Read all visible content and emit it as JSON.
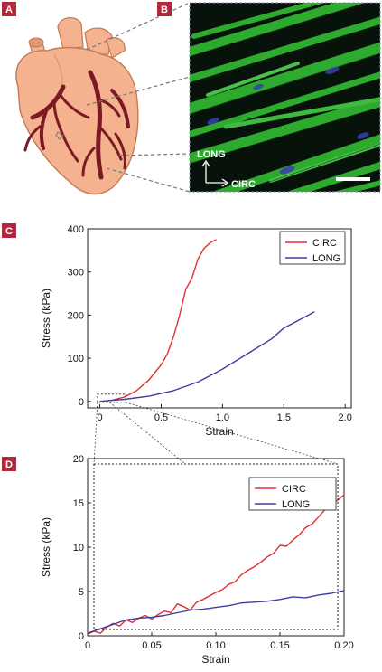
{
  "panels": {
    "a": "A",
    "b": "B",
    "c": "C",
    "d": "D"
  },
  "micrograph": {
    "long_label": "LONG",
    "circ_label": "CIRC"
  },
  "colors": {
    "circ": "#e03030",
    "long": "#3b3fa0",
    "panel_tag": "#b5263a",
    "fiber": "#2fb52f",
    "heart": "#f4b28e",
    "vessel": "#7a1a24"
  },
  "chart_data": [
    {
      "type": "line",
      "xlabel": "Strain",
      "ylabel": "Stress (kPa)",
      "xlim": [
        -0.1,
        2.05
      ],
      "ylim": [
        -15,
        400
      ],
      "xticks": [
        0,
        0.5,
        1.0,
        1.5,
        2.0
      ],
      "xtick_labels": [
        "0",
        "0.5",
        "1.0",
        "1.5",
        "2.0"
      ],
      "yticks": [
        0,
        100,
        200,
        300,
        400
      ],
      "ytick_labels": [
        "0",
        "100",
        "200",
        "300",
        "400"
      ],
      "legend": "top-right",
      "series": [
        {
          "name": "CIRC",
          "color": "#e03030",
          "x": [
            0,
            0.1,
            0.2,
            0.3,
            0.4,
            0.5,
            0.55,
            0.6,
            0.65,
            0.7,
            0.75,
            0.8,
            0.85,
            0.9,
            0.95
          ],
          "y": [
            0,
            3,
            10,
            25,
            50,
            85,
            110,
            150,
            200,
            260,
            285,
            330,
            355,
            368,
            375
          ]
        },
        {
          "name": "LONG",
          "color": "#3b3fa0",
          "x": [
            0,
            0.2,
            0.4,
            0.6,
            0.8,
            1.0,
            1.2,
            1.4,
            1.5,
            1.6,
            1.7,
            1.75
          ],
          "y": [
            0,
            5,
            12,
            25,
            45,
            75,
            110,
            145,
            170,
            185,
            200,
            208
          ]
        }
      ]
    },
    {
      "type": "line",
      "xlabel": "Strain",
      "ylabel": "Stress (kPa)",
      "xlim": [
        0,
        0.2
      ],
      "ylim": [
        0,
        20
      ],
      "xticks": [
        0,
        0.05,
        0.1,
        0.15,
        0.2
      ],
      "xtick_labels": [
        "0",
        "0.05",
        "0.10",
        "0.15",
        "0.20"
      ],
      "yticks": [
        0,
        5,
        10,
        15,
        20
      ],
      "ytick_labels": [
        "0",
        "5",
        "10",
        "15",
        "20"
      ],
      "legend": "top-right",
      "series": [
        {
          "name": "CIRC",
          "color": "#e03030",
          "x": [
            0,
            0.005,
            0.01,
            0.015,
            0.02,
            0.025,
            0.03,
            0.035,
            0.04,
            0.045,
            0.05,
            0.055,
            0.06,
            0.065,
            0.07,
            0.075,
            0.08,
            0.085,
            0.09,
            0.095,
            0.1,
            0.105,
            0.11,
            0.115,
            0.12,
            0.125,
            0.13,
            0.135,
            0.14,
            0.145,
            0.15,
            0.155,
            0.16,
            0.165,
            0.17,
            0.175,
            0.18,
            0.185,
            0.19,
            0.195,
            0.2
          ],
          "y": [
            0.2,
            0.5,
            0.3,
            1.0,
            1.4,
            1.1,
            1.8,
            1.5,
            2.0,
            2.3,
            1.9,
            2.4,
            2.8,
            2.6,
            3.6,
            3.3,
            2.9,
            3.8,
            4.1,
            4.5,
            4.9,
            5.2,
            5.8,
            6.1,
            6.9,
            7.4,
            7.8,
            8.3,
            8.9,
            9.3,
            10.2,
            10.1,
            10.8,
            11.4,
            12.2,
            12.6,
            13.4,
            14.2,
            14.8,
            15.3,
            15.9
          ]
        },
        {
          "name": "LONG",
          "color": "#3b3fa0",
          "x": [
            0,
            0.01,
            0.02,
            0.03,
            0.04,
            0.05,
            0.06,
            0.07,
            0.08,
            0.09,
            0.1,
            0.11,
            0.12,
            0.13,
            0.14,
            0.15,
            0.16,
            0.17,
            0.18,
            0.19,
            0.2
          ],
          "y": [
            0.3,
            0.8,
            1.3,
            1.8,
            2.0,
            2.1,
            2.3,
            2.6,
            2.9,
            3.0,
            3.2,
            3.4,
            3.7,
            3.8,
            3.9,
            4.1,
            4.4,
            4.3,
            4.6,
            4.8,
            5.1
          ]
        }
      ]
    }
  ]
}
